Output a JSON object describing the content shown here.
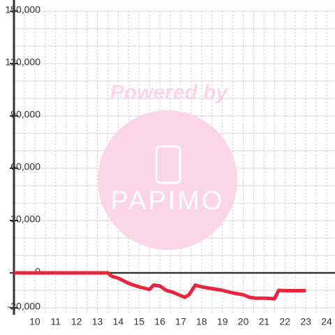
{
  "chart_data": {
    "type": "line",
    "watermark": {
      "line1": "Powered by",
      "line2": "PAPIMO"
    },
    "x": [
      9,
      13.5,
      13.7,
      14,
      14.5,
      15,
      15.5,
      15.7,
      16,
      16.3,
      16.6,
      17,
      17.2,
      17.4,
      17.7,
      18,
      18.5,
      19,
      19.5,
      20,
      20.3,
      20.6,
      21,
      21.5,
      21.7,
      22,
      23
    ],
    "series": [
      {
        "color": "#e8253a",
        "values": [
          0,
          0,
          -2000,
          -3000,
          -6000,
          -8000,
          -9500,
          -7000,
          -7500,
          -10000,
          -11000,
          -13000,
          -14000,
          -12500,
          -7000,
          -8000,
          -9000,
          -10000,
          -11500,
          -12500,
          -14000,
          -14500,
          -14500,
          -14800,
          -10000,
          -10200,
          -10200
        ]
      }
    ],
    "xlim": [
      9,
      24.4
    ],
    "ylim": [
      -24000,
      150000
    ],
    "xticks": [
      10,
      11,
      12,
      13,
      14,
      15,
      16,
      17,
      18,
      19,
      20,
      21,
      22,
      23,
      24
    ],
    "yticks": [
      {
        "value": -20000,
        "label": "-20,000"
      },
      0,
      {
        "value": 30000,
        "label": "30,000"
      },
      {
        "value": 60000,
        "label": "60,000"
      },
      {
        "value": 90000,
        "label": "90,000"
      },
      {
        "value": 120000,
        "label": "120,000"
      },
      {
        "value": 150000,
        "label": "150,000"
      }
    ],
    "y_minor_ticks": [
      -20000,
      -10000,
      10000,
      20000,
      40000,
      50000,
      70000,
      80000,
      100000,
      110000,
      130000,
      140000
    ],
    "x_minor_ticks": [
      9.5,
      10.5,
      11.5,
      12.5,
      13.5,
      14.5,
      15.5,
      16.5,
      17.5,
      18.5,
      19.5,
      20.5,
      21.5,
      22.5,
      23.5
    ],
    "grid": true
  }
}
